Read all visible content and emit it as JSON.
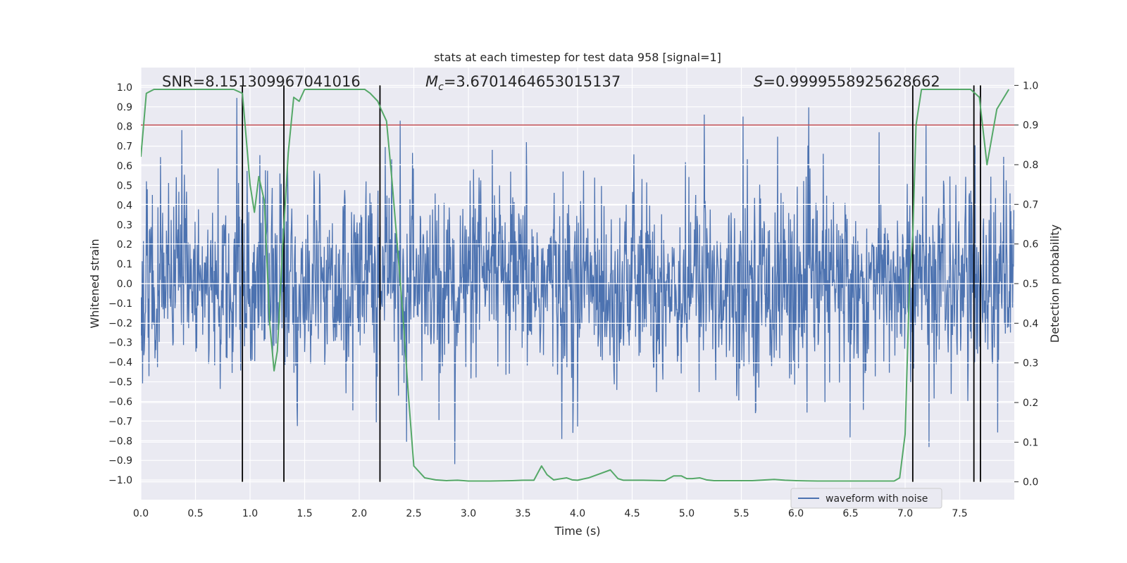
{
  "chart_data": {
    "type": "line",
    "title": "stats at each timestep for test data 958 [signal=1]",
    "xlabel": "Time (s)",
    "ylabel": "Whitened strain",
    "y2label": "Detection probability",
    "xlim": [
      0.0,
      8.0
    ],
    "ylim": [
      -1.1,
      1.1
    ],
    "y2lim": [
      -0.045,
      1.045
    ],
    "x_ticks": [
      "0.0",
      "0.5",
      "1.0",
      "1.5",
      "2.0",
      "2.5",
      "3.0",
      "3.5",
      "4.0",
      "4.5",
      "5.0",
      "5.5",
      "6.0",
      "6.5",
      "7.0",
      "7.5"
    ],
    "y_ticks": [
      "1.0",
      "0.9",
      "0.8",
      "0.7",
      "0.6",
      "0.5",
      "0.4",
      "0.3",
      "0.2",
      "0.1",
      "0.0",
      "-0.1",
      "-0.2",
      "-0.3",
      "-0.4",
      "-0.5",
      "-0.6",
      "-0.7",
      "-0.8",
      "-0.9",
      "-1.0"
    ],
    "y2_ticks": [
      "1.0",
      "0.9",
      "0.8",
      "0.7",
      "0.6",
      "0.5",
      "0.4",
      "0.3",
      "0.2",
      "0.1",
      "0.0"
    ],
    "grid": true,
    "legend_position": "lower-right",
    "annotations": {
      "snr": "SNR=8.151309967041016",
      "mc_symbol": "M",
      "mc_sub": "c",
      "mc_value": "=3.6701464653015137",
      "s_symbol": "S",
      "s_value": "=0.9999558925628662"
    },
    "threshold": {
      "value": 0.9,
      "color": "#c44e52"
    },
    "vertical_lines": [
      0.93,
      1.31,
      2.19,
      7.07,
      7.63,
      7.69
    ],
    "series": [
      {
        "name": "waveform with noise",
        "color": "#4c72b0",
        "axis": "left",
        "kind": "noise",
        "sample_rate": 512,
        "typical_amplitude": 0.42,
        "peak_amplitude": 0.97
      },
      {
        "color": "#55a868",
        "axis": "right",
        "x": [
          0.0,
          0.05,
          0.12,
          0.2,
          0.4,
          0.6,
          0.75,
          0.85,
          0.93,
          0.97,
          1.0,
          1.04,
          1.08,
          1.13,
          1.18,
          1.22,
          1.25,
          1.3,
          1.35,
          1.4,
          1.45,
          1.5,
          1.55,
          1.6,
          1.8,
          2.0,
          2.05,
          2.1,
          2.17,
          2.2,
          2.25,
          2.3,
          2.36,
          2.4,
          2.45,
          2.5,
          2.6,
          2.7,
          2.8,
          2.9,
          3.0,
          3.2,
          3.4,
          3.5,
          3.6,
          3.67,
          3.72,
          3.78,
          3.9,
          3.95,
          4.0,
          4.1,
          4.2,
          4.3,
          4.37,
          4.42,
          4.6,
          4.8,
          4.88,
          4.95,
          5.0,
          5.05,
          5.12,
          5.18,
          5.25,
          5.4,
          5.6,
          5.8,
          5.9,
          6.0,
          6.2,
          6.5,
          6.8,
          6.9,
          6.95,
          7.0,
          7.04,
          7.07,
          7.1,
          7.15,
          7.2,
          7.4,
          7.5,
          7.6,
          7.68,
          7.75,
          7.84,
          7.95
        ],
        "y": [
          0.82,
          0.98,
          0.99,
          0.99,
          0.99,
          0.99,
          0.99,
          0.99,
          0.98,
          0.85,
          0.75,
          0.68,
          0.77,
          0.71,
          0.4,
          0.28,
          0.33,
          0.6,
          0.83,
          0.97,
          0.96,
          0.99,
          0.99,
          0.99,
          0.99,
          0.99,
          0.99,
          0.98,
          0.96,
          0.94,
          0.91,
          0.76,
          0.56,
          0.42,
          0.22,
          0.04,
          0.01,
          0.005,
          0.003,
          0.004,
          0.002,
          0.002,
          0.003,
          0.004,
          0.004,
          0.04,
          0.018,
          0.005,
          0.01,
          0.005,
          0.004,
          0.01,
          0.02,
          0.03,
          0.008,
          0.004,
          0.004,
          0.003,
          0.015,
          0.015,
          0.008,
          0.008,
          0.01,
          0.005,
          0.003,
          0.003,
          0.003,
          0.006,
          0.004,
          0.003,
          0.002,
          0.002,
          0.002,
          0.002,
          0.01,
          0.12,
          0.5,
          0.62,
          0.9,
          0.99,
          0.99,
          0.99,
          0.99,
          0.99,
          0.97,
          0.8,
          0.94,
          0.99
        ]
      }
    ]
  }
}
